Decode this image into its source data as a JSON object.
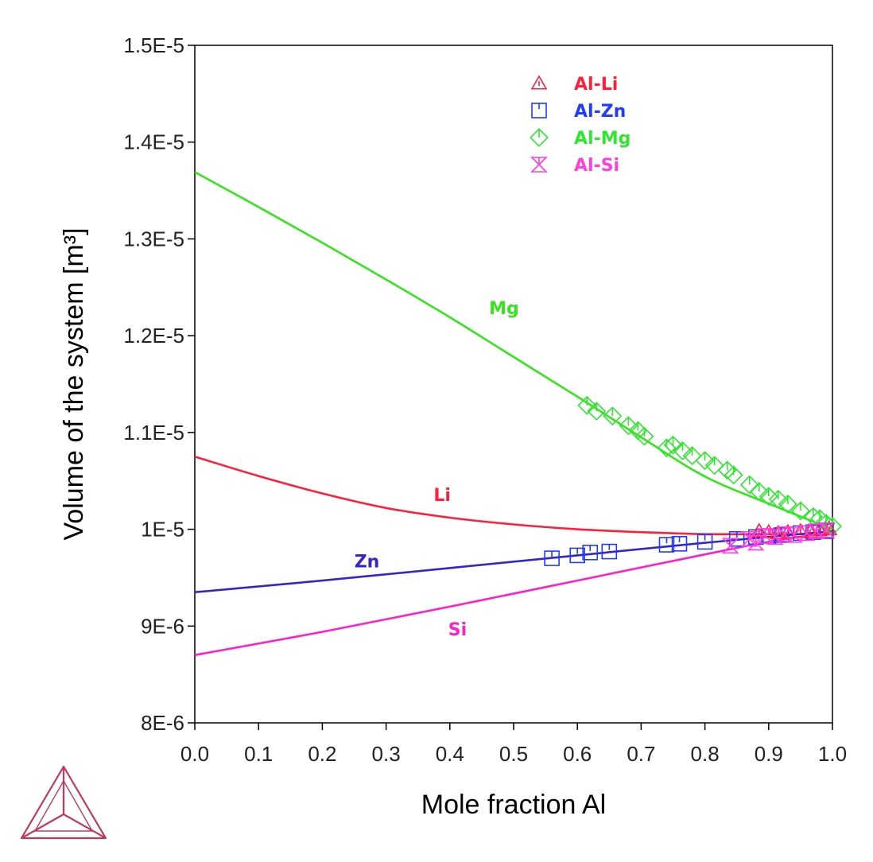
{
  "colors": {
    "Li": "#ff1f3a",
    "Zn": "#3526cc",
    "Zn_marker": "#1f3cff",
    "Mg": "#33e61a",
    "Mg_marker": "#2ee62e",
    "Si": "#ff1fc8",
    "Si_marker": "#ff3de0",
    "logo": "#c0395e"
  },
  "logo": {
    "icon": "tetrahedron-logo-icon"
  },
  "chart_data": {
    "type": "line",
    "xlabel": "Mole fraction Al",
    "ylabel": "Volume of the system [m³]",
    "xlim": [
      0.0,
      1.0
    ],
    "ylim": [
      8e-06,
      1.5e-05
    ],
    "x_ticks": [
      0.0,
      0.1,
      0.2,
      0.3,
      0.4,
      0.5,
      0.6,
      0.7,
      0.8,
      0.9,
      1.0
    ],
    "x_tick_labels": [
      "0.0",
      "0.1",
      "0.2",
      "0.3",
      "0.4",
      "0.5",
      "0.6",
      "0.7",
      "0.8",
      "0.9",
      "1.0"
    ],
    "y_ticks": [
      8e-06,
      9e-06,
      1e-05,
      1.1e-05,
      1.2e-05,
      1.3e-05,
      1.4e-05,
      1.5e-05
    ],
    "y_tick_labels": [
      "8E-6",
      "9E-6",
      "1E-5",
      "1.1E-5",
      "1.2E-5",
      "1.3E-5",
      "1.4E-5",
      "1.5E-5"
    ],
    "grid": false,
    "legend_position": "top-center",
    "legend": [
      {
        "label": "Al-Li",
        "marker": "triangle",
        "color_key": "Li"
      },
      {
        "label": "Al-Zn",
        "marker": "square",
        "color_key": "Zn_marker"
      },
      {
        "label": "Al-Mg",
        "marker": "diamond",
        "color_key": "Mg_marker"
      },
      {
        "label": "Al-Si",
        "marker": "hourglass",
        "color_key": "Si_marker"
      }
    ],
    "curves": [
      {
        "name": "Mg",
        "color_key": "Mg",
        "label": "Mg",
        "label_at": [
          0.485,
          1.229e-05
        ],
        "x": [
          0.0,
          0.1,
          0.2,
          0.3,
          0.4,
          0.5,
          0.6,
          0.7,
          0.8,
          0.9,
          1.0
        ],
        "y": [
          1.369e-05,
          1.333e-05,
          1.296e-05,
          1.258e-05,
          1.219e-05,
          1.178e-05,
          1.137e-05,
          1.095e-05,
          1.0545e-05,
          1.0265e-05,
          1e-05
        ]
      },
      {
        "name": "Li",
        "color_key": "Li",
        "label": "Li",
        "label_at": [
          0.388,
          1.036e-05
        ],
        "x": [
          0.0,
          0.1,
          0.2,
          0.3,
          0.4,
          0.5,
          0.6,
          0.7,
          0.8,
          0.9,
          1.0
        ],
        "y": [
          1.075e-05,
          1.055e-05,
          1.037e-05,
          1.022e-05,
          1.012e-05,
          1.005e-05,
          1e-05,
          9.97e-06,
          9.95e-06,
          9.95e-06,
          9.95e-06
        ]
      },
      {
        "name": "Zn",
        "color_key": "Zn",
        "label": "Zn",
        "label_at": [
          0.27,
          9.67e-06
        ],
        "x": [
          0.0,
          0.2,
          0.4,
          0.6,
          0.8,
          1.0
        ],
        "y": [
          9.35e-06,
          9.47e-06,
          9.6e-06,
          9.73e-06,
          9.86e-06,
          9.98e-06
        ]
      },
      {
        "name": "Si",
        "color_key": "Si",
        "label": "Si",
        "label_at": [
          0.412,
          8.97e-06
        ],
        "x": [
          0.0,
          0.2,
          0.4,
          0.6,
          0.8,
          0.9,
          1.0
        ],
        "y": [
          8.7e-06,
          8.94e-06,
          9.2e-06,
          9.47e-06,
          9.74e-06,
          9.87e-06,
          9.97e-06
        ]
      }
    ],
    "series": [
      {
        "name": "Al-Mg",
        "marker": "diamond",
        "color_key": "Mg_marker",
        "x": [
          0.615,
          0.63,
          0.655,
          0.68,
          0.695,
          0.705,
          0.74,
          0.75,
          0.765,
          0.78,
          0.8,
          0.815,
          0.835,
          0.845,
          0.87,
          0.885,
          0.9,
          0.915,
          0.93,
          0.95,
          0.97,
          0.98,
          0.99,
          1.0
        ],
        "y": [
          1.128e-05,
          1.122e-05,
          1.117e-05,
          1.107e-05,
          1.102e-05,
          1.096e-05,
          1.084e-05,
          1.087e-05,
          1.081e-05,
          1.076e-05,
          1.071e-05,
          1.066e-05,
          1.061e-05,
          1.056e-05,
          1.046e-05,
          1.039e-05,
          1.034e-05,
          1.031e-05,
          1.026e-05,
          1.019e-05,
          1.013e-05,
          1.011e-05,
          1.006e-05,
          1.003e-05
        ]
      },
      {
        "name": "Al-Zn",
        "marker": "square",
        "color_key": "Zn_marker",
        "x": [
          0.56,
          0.6,
          0.62,
          0.65,
          0.74,
          0.76,
          0.8,
          0.85,
          0.88,
          0.9,
          0.92,
          0.95,
          0.97,
          0.99
        ],
        "y": [
          9.7e-06,
          9.73e-06,
          9.76e-06,
          9.77e-06,
          9.84e-06,
          9.85e-06,
          9.87e-06,
          9.9e-06,
          9.92e-06,
          9.93e-06,
          9.94e-06,
          9.96e-06,
          9.97e-06,
          9.98e-06
        ]
      },
      {
        "name": "Al-Li",
        "marker": "triangle",
        "color_key": "Li",
        "x": [
          0.885,
          0.9,
          0.915,
          0.93,
          0.95,
          0.965,
          0.98,
          0.995
        ],
        "y": [
          9.98e-06,
          9.97e-06,
          9.96e-06,
          9.97e-06,
          9.98e-06,
          9.97e-06,
          9.99e-06,
          1e-05
        ]
      },
      {
        "name": "Al-Si",
        "marker": "hourglass",
        "color_key": "Si_marker",
        "x": [
          0.84,
          0.87,
          0.88,
          0.895,
          0.91,
          0.925,
          0.94,
          0.96,
          0.975,
          0.99
        ],
        "y": [
          9.83e-06,
          9.9e-06,
          9.86e-06,
          9.93e-06,
          9.92e-06,
          9.95e-06,
          9.94e-06,
          9.96e-06,
          9.98e-06,
          9.99e-06
        ]
      }
    ]
  }
}
